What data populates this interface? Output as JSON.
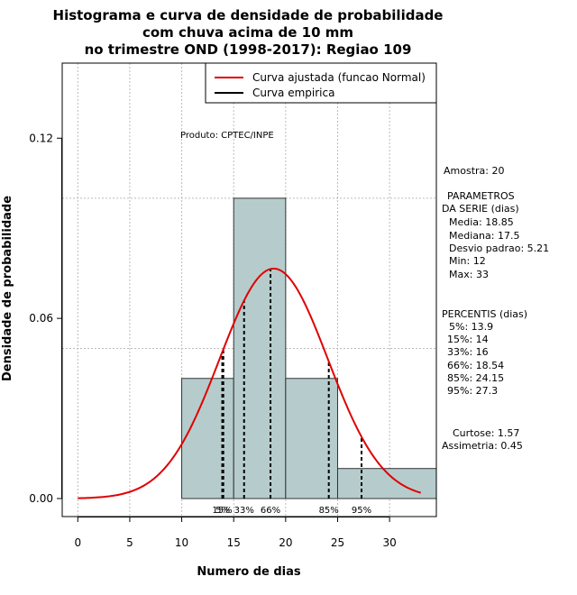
{
  "chart_data": {
    "type": "bar",
    "title_lines": [
      "Histograma e curva de densidade de probabilidade",
      "com chuva acima de 10 mm",
      "no trimestre OND (1998-2017): Regiao 109"
    ],
    "xlabel": "Numero de dias",
    "ylabel": "Densidade de probabilidade",
    "xlim": [
      -1.5,
      34.5
    ],
    "ylim": [
      -0.006,
      0.145
    ],
    "xticks": [
      0,
      5,
      10,
      15,
      20,
      25,
      30
    ],
    "yticks": [
      0.0,
      0.06,
      0.12
    ],
    "ytick_labels": [
      "0.00",
      "0.06",
      "0.12"
    ],
    "grid_x": [
      0,
      5,
      10,
      15,
      20,
      25,
      30
    ],
    "grid_y": [
      0.05,
      0.1
    ],
    "bins": [
      {
        "from": 10,
        "to": 15,
        "density": 0.04
      },
      {
        "from": 15,
        "to": 20,
        "density": 0.1
      },
      {
        "from": 20,
        "to": 25,
        "density": 0.04
      },
      {
        "from": 25,
        "to": 35,
        "density": 0.01
      }
    ],
    "normal_curve": {
      "mean": 18.85,
      "sd": 5.21,
      "x_from": 0,
      "x_to": 33
    },
    "percentile_lines": [
      {
        "label": "5%",
        "x": 13.9
      },
      {
        "label": "15%",
        "x": 14
      },
      {
        "label": "33%",
        "x": 16
      },
      {
        "label": "66%",
        "x": 18.54
      },
      {
        "label": "85%",
        "x": 24.15
      },
      {
        "label": "95%",
        "x": 27.3
      }
    ],
    "percentile_axis_labels": [
      {
        "text": "15%",
        "x": 13.9
      },
      {
        "text": "5%",
        "x": 13.95
      },
      {
        "text": "33%",
        "x": 16
      },
      {
        "text": "66%",
        "x": 18.54
      },
      {
        "text": "85%",
        "x": 24.15
      },
      {
        "text": "95%",
        "x": 27.3
      }
    ],
    "legend": {
      "placement": "top-right",
      "items": [
        {
          "label": "Curva ajustada (funcao Normal)",
          "color": "#e00000"
        },
        {
          "label": "Curva empirica",
          "color": "#000000"
        }
      ]
    },
    "annotation": "Produto: CPTEC/INPE",
    "colors": {
      "bar_fill": "#b6cccc",
      "bar_stroke": "#333333",
      "curve": "#e00000",
      "grid": "#bbbbbb"
    }
  },
  "side_panel": {
    "sample": "Amostra: 20",
    "params_title_1": "PARAMETROS",
    "params_title_2": "DA SERIE (dias)",
    "params": [
      "Media: 18.85",
      "Mediana: 17.5",
      "Desvio padrao: 5.21",
      "Min: 12",
      "Max: 33"
    ],
    "percentis_title": "PERCENTIS (dias)",
    "percentis": [
      "5%: 13.9",
      "15%: 14",
      "33%: 16",
      "66%: 18.54",
      "85%: 24.15",
      "95%: 27.3"
    ],
    "curtose": "Curtose: 1.57",
    "assimetria": "Assimetria: 0.45"
  }
}
